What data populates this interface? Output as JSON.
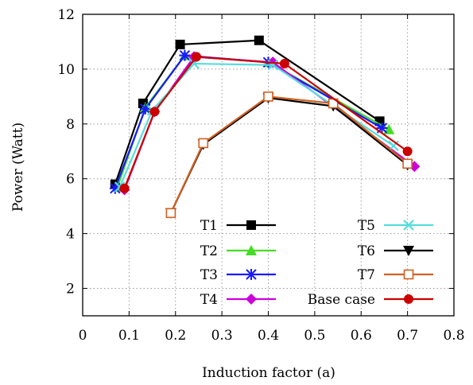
{
  "chart_data": {
    "type": "line",
    "title": "",
    "xlabel": "Induction factor (a)",
    "ylabel": "Power (Watt)",
    "xlim": [
      0,
      0.8
    ],
    "ylim": [
      1,
      12
    ],
    "xticks": [
      "0",
      "0.1",
      "0.2",
      "0.3",
      "0.4",
      "0.5",
      "0.6",
      "0.7",
      "0.8"
    ],
    "yticks": [
      "2",
      "4",
      "6",
      "8",
      "10",
      "12"
    ],
    "grid": true,
    "legend_position": "bottom-center-inside",
    "series": [
      {
        "name": "T1",
        "color": "#000000",
        "marker": "square-filled",
        "x": [
          0.07,
          0.13,
          0.21,
          0.38,
          0.64
        ],
        "y": [
          5.8,
          8.75,
          10.9,
          11.05,
          8.1
        ]
      },
      {
        "name": "T2",
        "color": "#44dd22",
        "marker": "triangle-up-filled",
        "x": [
          0.075,
          0.135,
          0.22,
          0.4,
          0.66
        ],
        "y": [
          5.7,
          8.6,
          10.5,
          10.25,
          7.8
        ]
      },
      {
        "name": "T3",
        "color": "#1a1aff",
        "marker": "asterisk",
        "x": [
          0.07,
          0.135,
          0.22,
          0.4,
          0.645
        ],
        "y": [
          5.65,
          8.55,
          10.5,
          10.25,
          7.85
        ]
      },
      {
        "name": "T4",
        "color": "#cc00dd",
        "marker": "diamond-filled",
        "x": [
          0.09,
          0.155,
          0.24,
          0.41,
          0.715
        ],
        "y": [
          5.6,
          8.45,
          10.45,
          10.25,
          6.45
        ]
      },
      {
        "name": "T5",
        "color": "#55dddd",
        "marker": "x",
        "x": [
          0.08,
          0.15,
          0.24,
          0.41,
          0.67
        ],
        "y": [
          5.7,
          8.5,
          10.2,
          10.15,
          7.2
        ]
      },
      {
        "name": "T6",
        "color": "#000000",
        "marker": "triangle-down-filled",
        "x": [
          0.19,
          0.26,
          0.4,
          0.54,
          0.7
        ],
        "y": [
          4.75,
          7.25,
          8.95,
          8.65,
          6.5
        ]
      },
      {
        "name": "T7",
        "color": "#d06020",
        "marker": "square-open",
        "x": [
          0.19,
          0.26,
          0.4,
          0.54,
          0.7
        ],
        "y": [
          4.75,
          7.3,
          9.0,
          8.75,
          6.55
        ]
      },
      {
        "name": "Base case",
        "color": "#cc0000",
        "marker": "circle-filled",
        "x": [
          0.09,
          0.155,
          0.245,
          0.435,
          0.7
        ],
        "y": [
          5.65,
          8.45,
          10.45,
          10.2,
          7.0
        ]
      }
    ]
  }
}
